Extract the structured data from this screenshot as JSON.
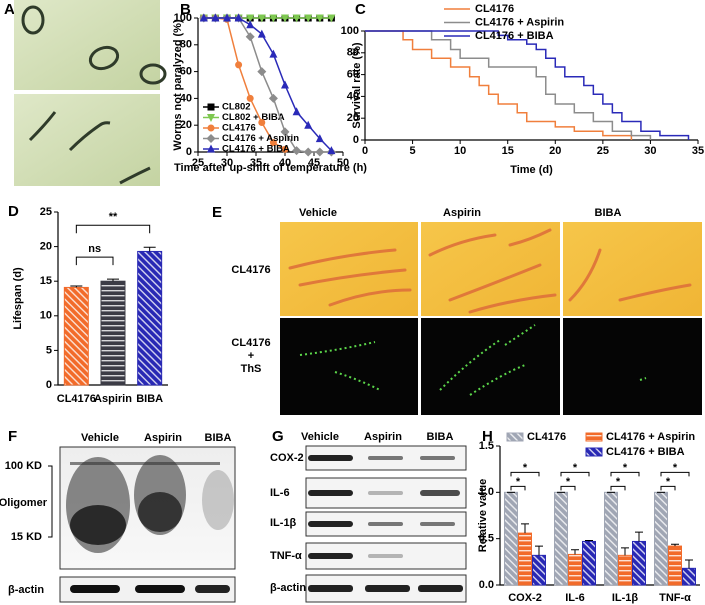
{
  "chart_data": [
    {
      "type": "line",
      "panel": "B",
      "xlabel": "Time after up-shift of temperature (h)",
      "ylabel": "Worms not paralyzed (%)",
      "x": [
        26,
        28,
        30,
        32,
        34,
        36,
        38,
        40,
        42,
        44,
        46,
        48
      ],
      "xlim": [
        25,
        50
      ],
      "xticks": [
        25,
        30,
        35,
        40,
        45,
        50
      ],
      "ylim": [
        0,
        100
      ],
      "yticks": [
        0,
        20,
        40,
        60,
        80,
        100
      ],
      "series": [
        {
          "name": "CL802",
          "color": "#000000",
          "marker": "square",
          "values": [
            100,
            100,
            100,
            100,
            100,
            100,
            100,
            100,
            100,
            100,
            100,
            100
          ]
        },
        {
          "name": "CL802 + BIBA",
          "color": "#7ec850",
          "marker": "triangle-down",
          "values": [
            100,
            100,
            100,
            100,
            100,
            100,
            100,
            100,
            100,
            100,
            100,
            100
          ]
        },
        {
          "name": "CL4176",
          "color": "#f07f3c",
          "marker": "circle",
          "values": [
            100,
            100,
            99,
            65,
            40,
            22,
            7,
            2,
            null,
            null,
            null,
            null
          ]
        },
        {
          "name": "CL4176 + Aspirin",
          "color": "#8c8c8c",
          "marker": "diamond",
          "values": [
            100,
            100,
            100,
            100,
            86,
            60,
            40,
            15,
            1,
            0,
            0,
            0
          ]
        },
        {
          "name": "CL4176 + BIBA",
          "color": "#2a2ab8",
          "marker": "triangle-up",
          "values": [
            100,
            100,
            100,
            100,
            95,
            88,
            73,
            50,
            30,
            20,
            10,
            1
          ]
        }
      ]
    },
    {
      "type": "step",
      "panel": "C",
      "xlabel": "Time (d)",
      "ylabel": "Survival rate (%)",
      "xlim": [
        0,
        35
      ],
      "xticks": [
        0,
        5,
        10,
        15,
        20,
        25,
        30,
        35
      ],
      "ylim": [
        0,
        100
      ],
      "yticks": [
        0,
        20,
        40,
        60,
        80,
        100
      ],
      "series": [
        {
          "name": "CL4176",
          "color": "#f07f3c",
          "x": [
            0,
            4,
            5,
            7,
            9,
            11,
            12,
            13,
            14,
            16,
            17,
            20,
            22,
            25,
            28
          ],
          "values": [
            100,
            92,
            83,
            75,
            67,
            58,
            50,
            42,
            33,
            25,
            17,
            12,
            8,
            4,
            0
          ]
        },
        {
          "name": "CL4176 + Aspirin",
          "color": "#8c8c8c",
          "x": [
            0,
            7,
            9,
            10,
            13,
            18,
            19,
            20,
            22,
            24,
            26,
            28,
            30
          ],
          "values": [
            100,
            92,
            83,
            75,
            67,
            58,
            42,
            33,
            25,
            17,
            8,
            4,
            0
          ]
        },
        {
          "name": "CL4176 + BIBA",
          "color": "#2a2ab8",
          "x": [
            0,
            14,
            15,
            17,
            18,
            19,
            20,
            21,
            23,
            24,
            25,
            26,
            27,
            29,
            31,
            34
          ],
          "values": [
            100,
            96,
            92,
            88,
            83,
            75,
            67,
            58,
            50,
            42,
            33,
            25,
            17,
            8,
            4,
            0
          ]
        }
      ]
    },
    {
      "type": "bar",
      "panel": "D",
      "ylabel": "Lifespan (d)",
      "categories": [
        "CL4176",
        "Aspirin",
        "BIBA"
      ],
      "values": [
        14.1,
        15.0,
        19.3
      ],
      "errors": [
        0.2,
        0.3,
        0.6
      ],
      "colors": [
        "#f26b2a",
        "#3c3c46",
        "#2828b4"
      ],
      "hatch": [
        "diagonal",
        "horizontal",
        "diagonal"
      ],
      "ylim": [
        0,
        25
      ],
      "yticks": [
        0,
        5,
        10,
        15,
        20,
        25
      ],
      "annotations": [
        "ns",
        "**"
      ]
    },
    {
      "type": "groupedbar",
      "panel": "H",
      "ylabel": "Relative value",
      "categories": [
        "COX-2",
        "IL-6",
        "IL-1β",
        "TNF-α"
      ],
      "ylim": [
        0,
        1.5
      ],
      "yticks": [
        {
          "value": 0,
          "label": "0.0"
        },
        0.5,
        {
          "value": 1,
          "label": "1.0"
        },
        1.5
      ],
      "series": [
        {
          "name": "CL4176",
          "color": "#a0a6b4",
          "hatch": "diagonal",
          "values": [
            1,
            1,
            1,
            1
          ],
          "errors": [
            0,
            0,
            0,
            0
          ]
        },
        {
          "name": "CL4176 + Aspirin",
          "color": "#f26b2a",
          "hatch": "horizontal",
          "values": [
            0.56,
            0.33,
            0.32,
            0.42
          ],
          "errors": [
            0.1,
            0.05,
            0.08,
            0.02
          ]
        },
        {
          "name": "CL4176 + BIBA",
          "color": "#2828b4",
          "hatch": "diagonal",
          "values": [
            0.32,
            0.47,
            0.47,
            0.18
          ],
          "errors": [
            0.1,
            0.01,
            0.1,
            0.09
          ]
        }
      ],
      "annotations": [
        "*",
        "*",
        "*",
        "*",
        "*",
        "*",
        "*",
        "*"
      ]
    }
  ],
  "panel_a": {
    "panel": "A"
  },
  "panel_e": {
    "panel": "E",
    "columns": [
      "Vehicle",
      "Aspirin",
      "BIBA"
    ],
    "rows": [
      [
        "CL4176"
      ],
      [
        "CL4176",
        "+",
        "ThS"
      ]
    ]
  },
  "panel_f": {
    "panel": "F",
    "columns": [
      "Vehicle",
      "Aspirin",
      "BIBA"
    ],
    "markers": [
      "100 KD",
      "Oligomer",
      "15 KD"
    ],
    "loading": "β-actin"
  },
  "panel_g": {
    "panel": "G",
    "columns": [
      "Vehicle",
      "Aspirin",
      "BIBA"
    ],
    "rows": [
      "COX-2",
      "IL-6",
      "IL-1β",
      "TNF-α",
      "β-actin"
    ]
  }
}
